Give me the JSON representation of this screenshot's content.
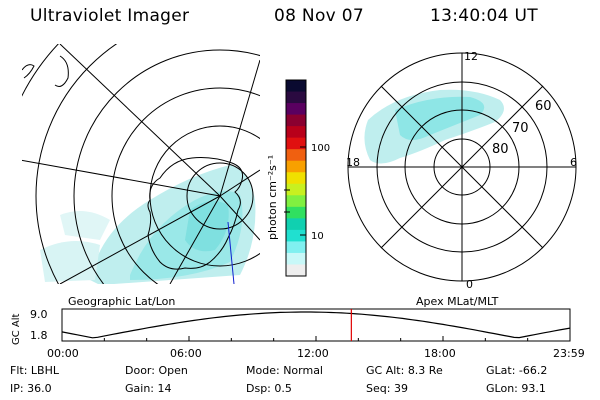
{
  "header": {
    "instrument": "Ultraviolet Imager",
    "date": "08 Nov 07",
    "time": "13:40:04 UT"
  },
  "colorbar": {
    "label": "photon cm⁻²s⁻¹",
    "ticks": [
      "100",
      "10"
    ],
    "colors": [
      "#0a0a30",
      "#2a0a40",
      "#5a0060",
      "#8a0030",
      "#b8001a",
      "#e01010",
      "#f06010",
      "#f8a000",
      "#f0e000",
      "#c8f020",
      "#80f040",
      "#30e060",
      "#10d0b0",
      "#20e0d0",
      "#80f0f0",
      "#c8f8f8",
      "#eeeeee"
    ]
  },
  "geo_map": {
    "label": "Geographic Lat/Lon"
  },
  "polar_plot": {
    "label": "Apex MLat/MLT",
    "mlt_labels": {
      "top": "12",
      "left": "18",
      "right": "6",
      "bottom": "0"
    },
    "lat_labels": [
      "60",
      "70",
      "80"
    ]
  },
  "altitude_strip": {
    "ylabel": "GC Alt",
    "ymax": "9.0",
    "ymin": "1.8",
    "x_ticks": [
      "00:00",
      "06:00",
      "12:00",
      "18:00",
      "23:59"
    ],
    "current_marker_hour": 13.67,
    "marker_color": "#e00000"
  },
  "info": {
    "row1": [
      {
        "key": "Flt:",
        "value": "LBHL"
      },
      {
        "key": "Door:",
        "value": "Open"
      },
      {
        "key": "Mode:",
        "value": "Normal"
      },
      {
        "key": "GC Alt:",
        "value": "8.3 Re"
      },
      {
        "key": "GLat:",
        "value": "-66.2"
      }
    ],
    "row2": [
      {
        "key": "IP:",
        "value": "36.0"
      },
      {
        "key": "Gain:",
        "value": "14"
      },
      {
        "key": "Dsp:",
        "value": "0.5"
      },
      {
        "key": "Seq:",
        "value": "39"
      },
      {
        "key": "GLon:",
        "value": "93.1"
      }
    ]
  }
}
